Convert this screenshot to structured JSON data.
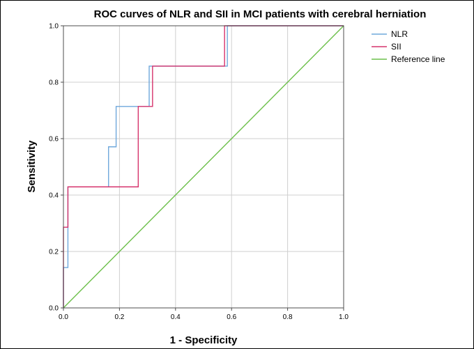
{
  "chart_data": {
    "type": "line",
    "title": "ROC curves of NLR and SII in MCI patients with cerebral herniation",
    "xlabel": "1 - Specificity",
    "ylabel": "Sensitivity",
    "xlim": [
      0,
      1
    ],
    "ylim": [
      0,
      1
    ],
    "x_ticks": [
      "0.0",
      "0.2",
      "0.4",
      "0.6",
      "0.8",
      "1.0"
    ],
    "y_ticks": [
      "0.0",
      "0.2",
      "0.4",
      "0.6",
      "0.8",
      "1.0"
    ],
    "grid": true,
    "legend_position": "right",
    "series": [
      {
        "name": "NLR",
        "color": "#6fa8dc",
        "x": [
          0.0,
          0.0,
          0.016,
          0.016,
          0.016,
          0.016,
          0.161,
          0.161,
          0.188,
          0.188,
          0.306,
          0.306,
          0.585,
          0.585,
          1.0
        ],
        "y": [
          0.0,
          0.143,
          0.143,
          0.286,
          0.286,
          0.429,
          0.429,
          0.571,
          0.571,
          0.714,
          0.714,
          0.857,
          0.857,
          1.0,
          1.0
        ]
      },
      {
        "name": "SII",
        "color": "#d6336c",
        "x": [
          0.0,
          0.0,
          0.016,
          0.016,
          0.267,
          0.267,
          0.318,
          0.318,
          0.575,
          0.575,
          1.0
        ],
        "y": [
          0.0,
          0.286,
          0.286,
          0.429,
          0.429,
          0.714,
          0.714,
          0.857,
          0.857,
          1.0,
          1.0
        ]
      },
      {
        "name": "Reference line",
        "color": "#6cbf4a",
        "x": [
          0.0,
          1.0
        ],
        "y": [
          0.0,
          1.0
        ]
      }
    ]
  }
}
